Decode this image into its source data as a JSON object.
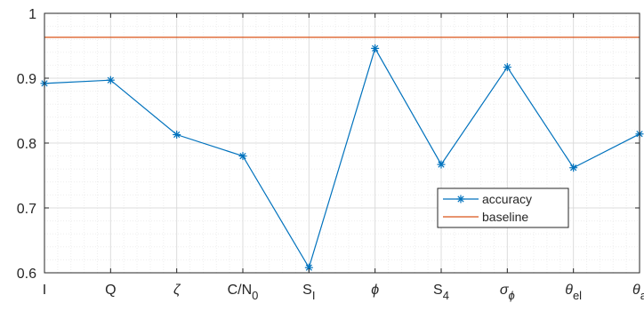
{
  "chart_data": {
    "type": "line",
    "categories": [
      {
        "base": "I"
      },
      {
        "base": "Q"
      },
      {
        "base": "ζ",
        "italic": true
      },
      {
        "base": "C/N",
        "sub": "0"
      },
      {
        "base": "S",
        "sub": "I"
      },
      {
        "base": "ϕ",
        "italic": true
      },
      {
        "base": "S",
        "sub": "4"
      },
      {
        "base": "σ",
        "sub": "ϕ",
        "italic": true,
        "subItalic": true
      },
      {
        "base": "θ",
        "sub": "el",
        "italic": true
      },
      {
        "base": "θ",
        "sub": "a",
        "italic": true
      }
    ],
    "series": [
      {
        "name": "accuracy",
        "values": [
          0.892,
          0.897,
          0.813,
          0.78,
          0.608,
          0.946,
          0.767,
          0.917,
          0.762,
          0.814
        ],
        "color": "#0072BD",
        "marker": "asterisk"
      },
      {
        "name": "baseline",
        "values": [
          0.963,
          0.963,
          0.963,
          0.963,
          0.963,
          0.963,
          0.963,
          0.963,
          0.963,
          0.963
        ],
        "color": "#D95319",
        "marker": "none"
      }
    ],
    "ylim": [
      0.6,
      1.0
    ],
    "yticks": [
      "0.6",
      "0.7",
      "0.8",
      "0.9",
      "1"
    ],
    "grid": true,
    "minor_grid": true,
    "legend_position": "inside-lower-right"
  }
}
